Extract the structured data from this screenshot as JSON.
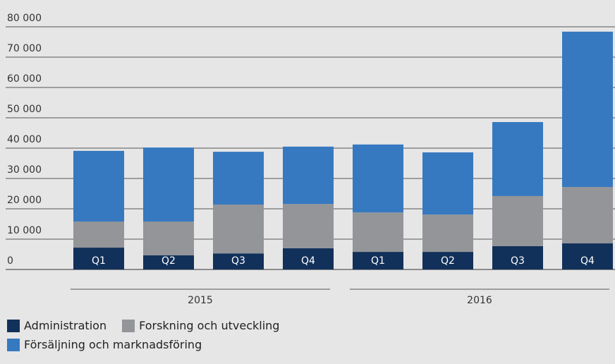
{
  "chart_data": {
    "type": "stacked_bar",
    "categories": [
      "Q1",
      "Q2",
      "Q3",
      "Q4",
      "Q1",
      "Q2",
      "Q3",
      "Q4"
    ],
    "groups": [
      "2015",
      "2016"
    ],
    "series": [
      {
        "name": "Administration",
        "color": "#12315a",
        "values": [
          7200,
          4700,
          5300,
          7000,
          5800,
          5800,
          7700,
          8600
        ]
      },
      {
        "name": "Forskning och utveckling",
        "color": "#939598",
        "values": [
          8600,
          11100,
          16100,
          14600,
          13000,
          12300,
          16500,
          18600
        ]
      },
      {
        "name": "Försäljning och marknadsföring",
        "color": "#3679c0",
        "values": [
          23300,
          24400,
          17400,
          18900,
          22400,
          20500,
          24400,
          51200
        ]
      }
    ],
    "ylim": [
      0,
      80000
    ],
    "yticks": [
      0,
      {
        "value": 10000,
        "label": "10 000"
      },
      {
        "value": 20000,
        "label": "20 000"
      },
      {
        "value": 30000,
        "label": "30 000"
      },
      {
        "value": 40000,
        "label": "40 000"
      },
      {
        "value": 50000,
        "label": "50 000"
      },
      {
        "value": 60000,
        "label": "60 000"
      },
      {
        "value": 70000,
        "label": "70 000"
      },
      {
        "value": 80000,
        "label": "80 000"
      }
    ],
    "grid": true
  }
}
